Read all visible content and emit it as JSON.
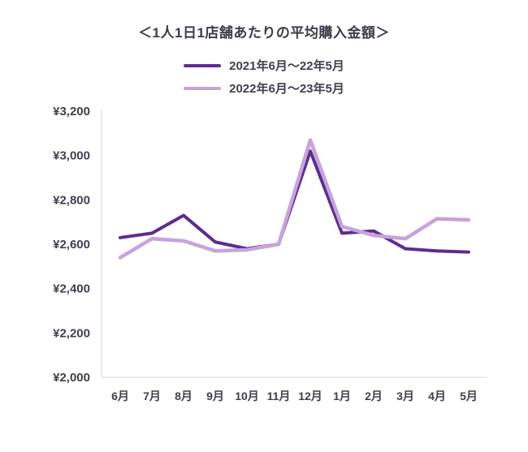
{
  "chart_data": {
    "type": "line",
    "title": "＜1人1日1店舗あたりの平均購入金額＞",
    "categories": [
      "6月",
      "7月",
      "8月",
      "9月",
      "10月",
      "11月",
      "12月",
      "1月",
      "2月",
      "3月",
      "4月",
      "5月"
    ],
    "series": [
      {
        "name": "2021年6月〜22年5月",
        "color": "#5b2d90",
        "values": [
          2630,
          2650,
          2730,
          2610,
          2580,
          2600,
          3020,
          2650,
          2660,
          2580,
          2570,
          2565
        ]
      },
      {
        "name": "2022年6月〜23年5月",
        "color": "#c6a3dd",
        "values": [
          2540,
          2625,
          2615,
          2570,
          2575,
          2600,
          3070,
          2680,
          2640,
          2625,
          2715,
          2710
        ]
      }
    ],
    "ylim": [
      2000,
      3200
    ],
    "y_ticks": [
      {
        "label": "¥2,000",
        "value": 2000
      },
      {
        "label": "¥2,200",
        "value": 2200
      },
      {
        "label": "¥2,400",
        "value": 2400
      },
      {
        "label": "¥2,600",
        "value": 2600
      },
      {
        "label": "¥2,800",
        "value": 2800
      },
      {
        "label": "¥3,000",
        "value": 3000
      },
      {
        "label": "¥3,200",
        "value": 3200
      }
    ],
    "grid": false,
    "legend_position": "top"
  },
  "colors": {
    "axis": "#d9d9d9",
    "text": "#3f3f4e"
  }
}
